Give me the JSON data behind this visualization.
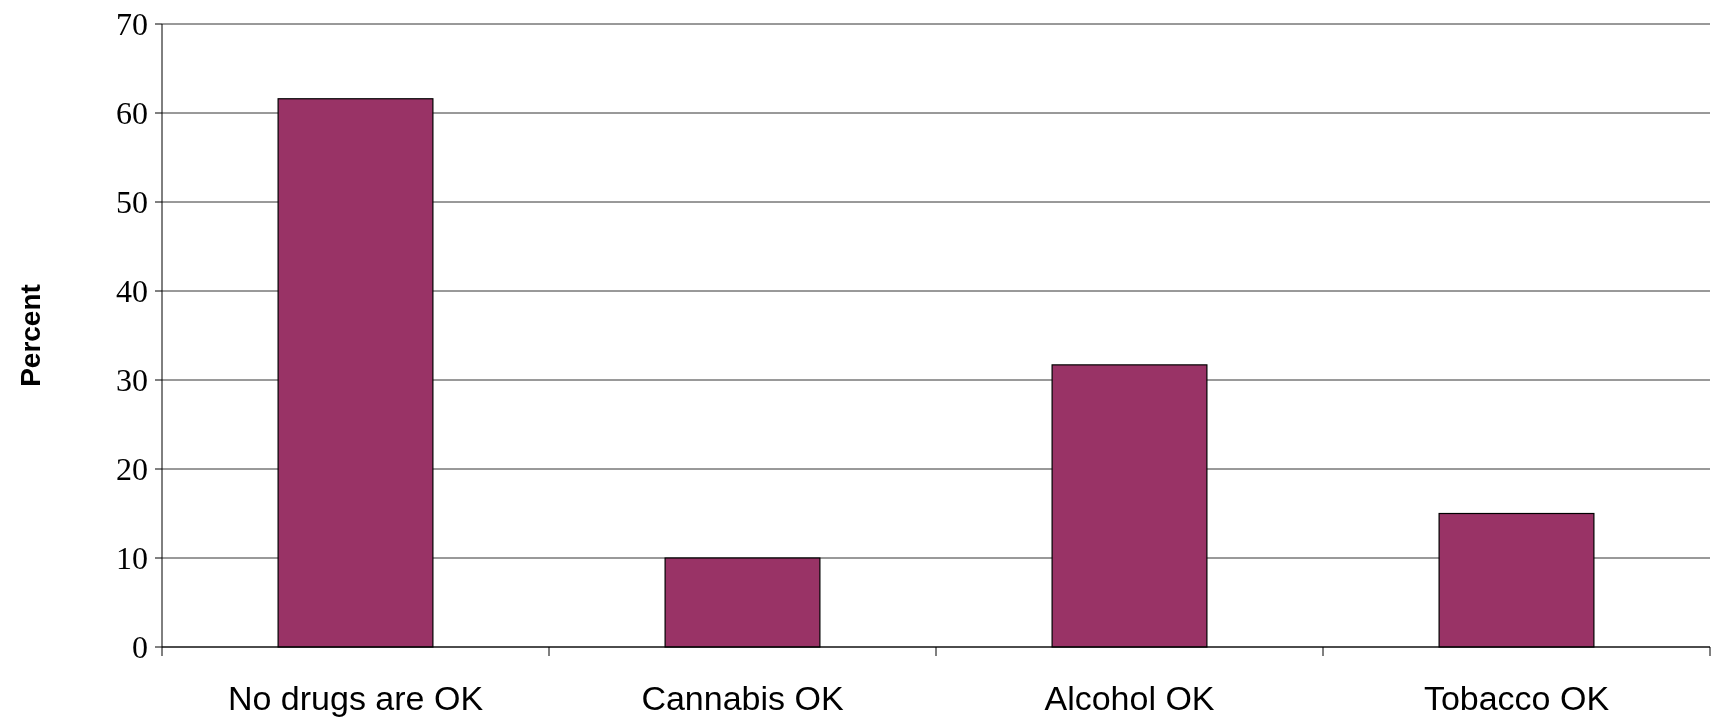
{
  "chart_data": {
    "type": "bar",
    "ylabel": "Percent",
    "categories": [
      "No drugs are OK",
      "Cannabis OK",
      "Alcohol OK",
      "Tobacco OK"
    ],
    "values": [
      61.6,
      10,
      31.7,
      15
    ],
    "color": "#993366",
    "ylim": [
      0,
      70
    ],
    "yticks": [
      0,
      10,
      20,
      30,
      40,
      50,
      60,
      70
    ],
    "grid": "y"
  }
}
